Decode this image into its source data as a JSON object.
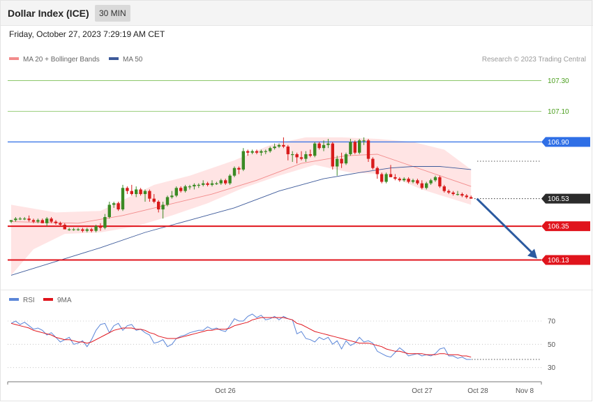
{
  "header": {
    "title": "Dollar Index (ICE)",
    "timeframe": "30 MIN"
  },
  "datetime": "Friday, October 27, 2023 7:29:19 AM CET",
  "legend_top": {
    "bb_label": "MA 20 + Bollinger Bands",
    "ma50_label": "MA 50"
  },
  "credit": "Research © 2023 Trading Central",
  "legend_bottom": {
    "rsi_label": "RSI",
    "ma9_label": "9MA"
  },
  "colors": {
    "target": "#4a9e1d",
    "resistance": "#2f6fe6",
    "support": "#e0141c",
    "bb_fill": "#ffe4e4",
    "ma20": "#f28b8b",
    "ma50": "#3d5a9a",
    "bull": "#3a8a24",
    "bear": "#d81b1b",
    "rsi": "#5b86d8",
    "rsi_ma": "#e0141c",
    "arrow": "#2b5aa0"
  },
  "chart_data": [
    {
      "type": "candlestick",
      "title": "Dollar Index (ICE)",
      "timeframe": "30 MIN",
      "ylim": [
        105.95,
        107.38
      ],
      "x_labels": [
        "Oct 26",
        "Oct 27",
        "Oct 28",
        "Nov 8"
      ],
      "levels": [
        {
          "value": "107.30",
          "kind": "target"
        },
        {
          "value": "107.10",
          "kind": "target"
        },
        {
          "value": "106.90",
          "kind": "resistance"
        },
        {
          "value": "106.53",
          "kind": "last"
        },
        {
          "value": "106.35",
          "kind": "support"
        },
        {
          "value": "106.13",
          "kind": "support"
        }
      ],
      "candles": [
        [
          106.38,
          106.39,
          106.37,
          106.39
        ],
        [
          106.39,
          106.41,
          106.38,
          106.4
        ],
        [
          106.4,
          106.41,
          106.39,
          106.4
        ],
        [
          106.4,
          106.41,
          106.39,
          106.4
        ],
        [
          106.4,
          106.42,
          106.38,
          106.39
        ],
        [
          106.39,
          106.4,
          106.37,
          106.38
        ],
        [
          106.38,
          106.4,
          106.37,
          106.39
        ],
        [
          106.39,
          106.4,
          106.37,
          106.37
        ],
        [
          106.37,
          106.41,
          106.35,
          106.4
        ],
        [
          106.4,
          106.41,
          106.37,
          106.38
        ],
        [
          106.38,
          106.39,
          106.36,
          106.37
        ],
        [
          106.37,
          106.38,
          106.35,
          106.36
        ],
        [
          106.36,
          106.37,
          106.33,
          106.33
        ],
        [
          106.33,
          106.34,
          106.32,
          106.33
        ],
        [
          106.33,
          106.34,
          106.32,
          106.33
        ],
        [
          106.33,
          106.34,
          106.32,
          106.33
        ],
        [
          106.33,
          106.34,
          106.31,
          106.32
        ],
        [
          106.32,
          106.34,
          106.31,
          106.33
        ],
        [
          106.33,
          106.34,
          106.31,
          106.32
        ],
        [
          106.32,
          106.36,
          106.31,
          106.35
        ],
        [
          106.35,
          106.37,
          106.32,
          106.34
        ],
        [
          106.34,
          106.43,
          106.33,
          106.41
        ],
        [
          106.41,
          106.51,
          106.4,
          106.49
        ],
        [
          106.49,
          106.51,
          106.47,
          106.5
        ],
        [
          106.5,
          106.51,
          106.45,
          106.46
        ],
        [
          106.46,
          106.62,
          106.45,
          106.6
        ],
        [
          106.6,
          106.61,
          106.56,
          106.58
        ],
        [
          106.58,
          106.62,
          106.55,
          106.56
        ],
        [
          106.56,
          106.61,
          106.54,
          106.59
        ],
        [
          106.59,
          106.6,
          106.55,
          106.56
        ],
        [
          106.56,
          106.59,
          106.51,
          106.58
        ],
        [
          106.58,
          106.59,
          106.51,
          106.53
        ],
        [
          106.53,
          106.56,
          106.5,
          106.51
        ],
        [
          106.51,
          106.52,
          106.44,
          106.46
        ],
        [
          106.46,
          106.51,
          106.4,
          106.49
        ],
        [
          106.49,
          106.55,
          106.48,
          106.54
        ],
        [
          106.54,
          106.58,
          106.53,
          106.55
        ],
        [
          106.55,
          106.61,
          106.54,
          106.6
        ],
        [
          106.6,
          106.61,
          106.57,
          106.58
        ],
        [
          106.58,
          106.62,
          106.57,
          106.61
        ],
        [
          106.61,
          106.62,
          106.59,
          106.61
        ],
        [
          106.61,
          106.63,
          106.59,
          106.62
        ],
        [
          106.62,
          106.63,
          106.6,
          106.62
        ],
        [
          106.62,
          106.65,
          106.61,
          106.63
        ],
        [
          106.63,
          106.64,
          106.61,
          106.62
        ],
        [
          106.62,
          106.65,
          106.61,
          106.63
        ],
        [
          106.63,
          106.64,
          106.62,
          106.63
        ],
        [
          106.63,
          106.66,
          106.62,
          106.65
        ],
        [
          106.65,
          106.66,
          106.62,
          106.63
        ],
        [
          106.63,
          106.69,
          106.62,
          106.68
        ],
        [
          106.68,
          106.74,
          106.67,
          106.73
        ],
        [
          106.73,
          106.74,
          106.69,
          106.72
        ],
        [
          106.72,
          106.86,
          106.71,
          106.84
        ],
        [
          106.84,
          106.85,
          106.81,
          106.83
        ],
        [
          106.83,
          106.85,
          106.82,
          106.84
        ],
        [
          106.84,
          106.85,
          106.82,
          106.83
        ],
        [
          106.83,
          106.85,
          106.81,
          106.84
        ],
        [
          106.84,
          106.85,
          106.82,
          106.84
        ],
        [
          106.84,
          106.87,
          106.83,
          106.86
        ],
        [
          106.86,
          106.89,
          106.85,
          106.87
        ],
        [
          106.87,
          106.89,
          106.86,
          106.88
        ],
        [
          106.88,
          106.93,
          106.86,
          106.87
        ],
        [
          106.87,
          106.88,
          106.78,
          106.82
        ],
        [
          106.82,
          106.84,
          106.77,
          106.82
        ],
        [
          106.82,
          106.83,
          106.76,
          106.8
        ],
        [
          106.8,
          106.84,
          106.78,
          106.79
        ],
        [
          106.79,
          106.84,
          106.77,
          106.82
        ],
        [
          106.82,
          106.85,
          106.8,
          106.81
        ],
        [
          106.81,
          106.9,
          106.8,
          106.89
        ],
        [
          106.89,
          106.9,
          106.85,
          106.86
        ],
        [
          106.86,
          106.91,
          106.84,
          106.88
        ],
        [
          106.88,
          106.92,
          106.86,
          106.89
        ],
        [
          106.89,
          106.9,
          106.72,
          106.74
        ],
        [
          106.74,
          106.81,
          106.68,
          106.79
        ],
        [
          106.79,
          106.83,
          106.73,
          106.76
        ],
        [
          106.76,
          106.83,
          106.75,
          106.82
        ],
        [
          106.82,
          106.92,
          106.81,
          106.9
        ],
        [
          106.9,
          106.91,
          106.82,
          106.83
        ],
        [
          106.83,
          106.92,
          106.82,
          106.91
        ],
        [
          106.91,
          106.93,
          106.88,
          106.91
        ],
        [
          106.91,
          106.92,
          106.77,
          106.79
        ],
        [
          106.79,
          106.8,
          106.72,
          106.73
        ],
        [
          106.73,
          106.74,
          106.66,
          106.69
        ],
        [
          106.69,
          106.7,
          106.63,
          106.64
        ],
        [
          106.64,
          106.7,
          106.63,
          106.69
        ],
        [
          106.69,
          106.75,
          106.68,
          106.67
        ],
        [
          106.67,
          106.69,
          106.65,
          106.66
        ],
        [
          106.66,
          106.67,
          106.64,
          106.65
        ],
        [
          106.65,
          106.67,
          106.64,
          106.66
        ],
        [
          106.66,
          106.67,
          106.63,
          106.64
        ],
        [
          106.64,
          106.66,
          106.63,
          106.65
        ],
        [
          106.65,
          106.66,
          106.62,
          106.63
        ],
        [
          106.63,
          106.65,
          106.59,
          106.6
        ],
        [
          106.6,
          106.64,
          106.59,
          106.63
        ],
        [
          106.63,
          106.66,
          106.62,
          106.65
        ],
        [
          106.65,
          106.68,
          106.64,
          106.67
        ],
        [
          106.67,
          106.68,
          106.6,
          106.61
        ],
        [
          106.61,
          106.62,
          106.57,
          106.58
        ],
        [
          106.58,
          106.59,
          106.56,
          106.57
        ],
        [
          106.57,
          106.58,
          106.55,
          106.56
        ],
        [
          106.56,
          106.58,
          106.55,
          106.56
        ],
        [
          106.56,
          106.57,
          106.54,
          106.55
        ],
        [
          106.55,
          106.56,
          106.53,
          106.54
        ],
        [
          106.54,
          106.55,
          106.53,
          106.53
        ]
      ],
      "ma20": [
        [
          0,
          106.38
        ],
        [
          15,
          106.37
        ],
        [
          25,
          106.42
        ],
        [
          35,
          106.49
        ],
        [
          45,
          106.56
        ],
        [
          55,
          106.65
        ],
        [
          65,
          106.76
        ],
        [
          75,
          106.81
        ],
        [
          82,
          106.82
        ],
        [
          90,
          106.74
        ],
        [
          97,
          106.67
        ],
        [
          103,
          106.61
        ]
      ],
      "bb_upper": [
        [
          0,
          106.49
        ],
        [
          10,
          106.44
        ],
        [
          20,
          106.45
        ],
        [
          25,
          106.52
        ],
        [
          32,
          106.62
        ],
        [
          40,
          106.68
        ],
        [
          50,
          106.78
        ],
        [
          58,
          106.88
        ],
        [
          66,
          106.93
        ],
        [
          74,
          106.93
        ],
        [
          82,
          106.92
        ],
        [
          90,
          106.9
        ],
        [
          97,
          106.85
        ],
        [
          103,
          106.72
        ]
      ],
      "bb_lower": [
        [
          0,
          106.03
        ],
        [
          5,
          106.2
        ],
        [
          12,
          106.3
        ],
        [
          20,
          106.31
        ],
        [
          28,
          106.35
        ],
        [
          36,
          106.42
        ],
        [
          44,
          106.5
        ],
        [
          52,
          106.6
        ],
        [
          60,
          106.68
        ],
        [
          68,
          106.75
        ],
        [
          76,
          106.7
        ],
        [
          84,
          106.69
        ],
        [
          92,
          106.59
        ],
        [
          103,
          106.49
        ]
      ],
      "ma50": [
        [
          0,
          106.03
        ],
        [
          10,
          106.12
        ],
        [
          20,
          106.21
        ],
        [
          30,
          106.31
        ],
        [
          40,
          106.39
        ],
        [
          50,
          106.47
        ],
        [
          60,
          106.58
        ],
        [
          70,
          106.66
        ],
        [
          78,
          106.7
        ],
        [
          85,
          106.73
        ],
        [
          90,
          106.74
        ],
        [
          96,
          106.74
        ],
        [
          103,
          106.72
        ]
      ],
      "forecast": {
        "from": [
          104,
          106.53
        ],
        "to": "106.13"
      }
    },
    {
      "type": "line",
      "title": "RSI",
      "ylim": [
        22,
        82
      ],
      "y_ticks": [
        "70",
        "50",
        "30"
      ],
      "series": [
        {
          "name": "RSI",
          "values": [
            68,
            70,
            67,
            69,
            66,
            63,
            64,
            62,
            58,
            60,
            56,
            52,
            54,
            56,
            50,
            51,
            53,
            48,
            54,
            62,
            67,
            68,
            60,
            66,
            68,
            62,
            66,
            67,
            62,
            63,
            60,
            58,
            51,
            52,
            54,
            48,
            50,
            55,
            57,
            58,
            60,
            61,
            62,
            62,
            65,
            63,
            64,
            62,
            61,
            66,
            72,
            70,
            70,
            74,
            76,
            73,
            75,
            71,
            72,
            74,
            71,
            74,
            72,
            71,
            59,
            61,
            55,
            54,
            52,
            56,
            54,
            56,
            50,
            53,
            46,
            53,
            49,
            51,
            56,
            52,
            53,
            51,
            44,
            42,
            40,
            39,
            43,
            47,
            44,
            40,
            41,
            42,
            40,
            41,
            40,
            42,
            46,
            47,
            40,
            40,
            38,
            39,
            37,
            37
          ]
        },
        {
          "name": "9MA",
          "values": [
            68,
            67,
            66,
            65,
            64,
            62,
            61,
            60,
            59,
            58,
            56,
            55,
            54,
            54,
            53,
            52,
            52,
            51,
            52,
            54,
            56,
            58,
            60,
            62,
            63,
            64,
            64,
            64,
            63,
            63,
            62,
            60,
            59,
            57,
            56,
            55,
            55,
            55,
            56,
            57,
            58,
            59,
            60,
            61,
            62,
            62,
            63,
            63,
            63,
            64,
            66,
            67,
            68,
            69,
            71,
            72,
            73,
            73,
            73,
            73,
            73,
            73,
            72,
            71,
            68,
            67,
            65,
            63,
            61,
            60,
            59,
            58,
            57,
            56,
            55,
            54,
            53,
            52,
            51,
            51,
            51,
            50,
            49,
            48,
            46,
            45,
            44,
            44,
            43,
            42,
            42,
            42,
            42,
            41,
            41,
            41,
            42,
            42,
            41,
            41,
            41,
            40,
            40,
            39
          ]
        }
      ]
    }
  ]
}
